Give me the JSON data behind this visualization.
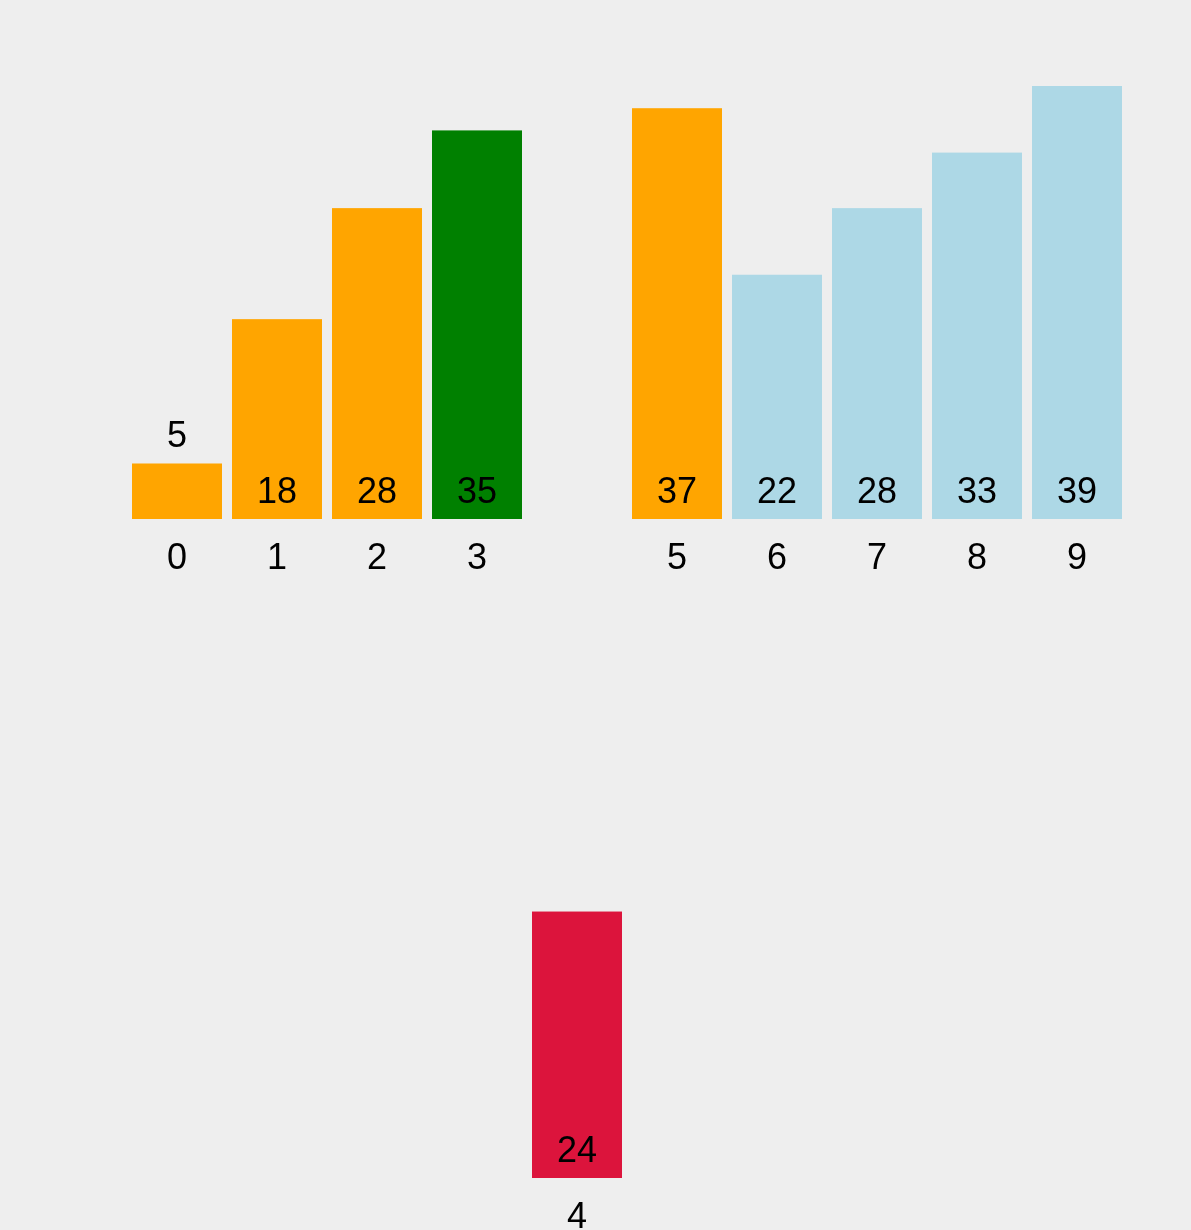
{
  "chart_data": [
    {
      "type": "bar",
      "categories": [
        "0",
        "1",
        "2",
        "3",
        null,
        "5",
        "6",
        "7",
        "8",
        "9"
      ],
      "values": [
        5,
        18,
        28,
        35,
        null,
        37,
        22,
        28,
        33,
        39
      ],
      "colors": [
        "#ffa500",
        "#ffa500",
        "#ffa500",
        "#008000",
        null,
        "#ffa500",
        "#add8e6",
        "#add8e6",
        "#add8e6",
        "#add8e6"
      ],
      "data_labels": true
    },
    {
      "type": "bar",
      "categories": [
        "4"
      ],
      "values": [
        24
      ],
      "colors": [
        "#dc143c"
      ],
      "data_labels": true
    }
  ]
}
